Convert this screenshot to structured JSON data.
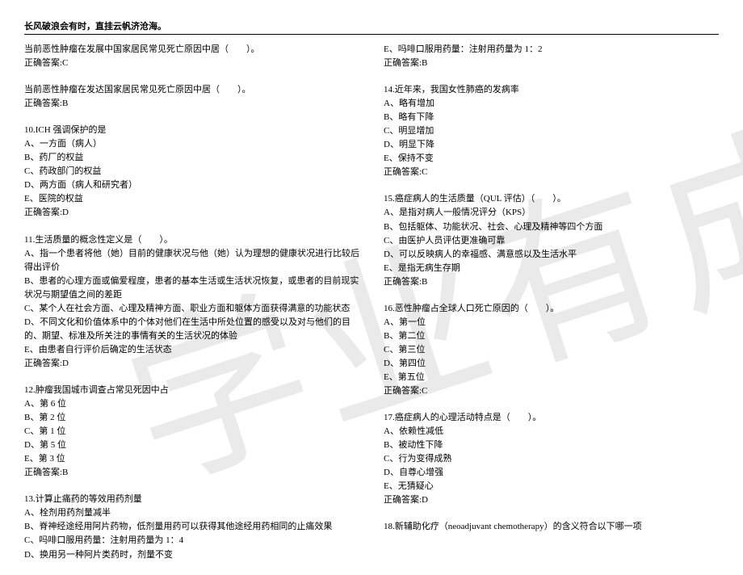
{
  "header_title": "长风破浪会有时，直挂云帆济沧海。",
  "watermark": "学业有成",
  "left": {
    "s1": {
      "q": "当前恶性肿瘤在发展中国家居民常见死亡原因中居（　　）。",
      "ans": "正确答案:C"
    },
    "s2": {
      "q": "当前恶性肿瘤在发达国家居民常见死亡原因中居（　　）。",
      "ans": "正确答案:B"
    },
    "q10": {
      "stem": "10.ICH 强调保护的是",
      "a": "A、一方面（病人）",
      "b": "B、药厂的权益",
      "c": "C、药政部门的权益",
      "d": "D、两方面（病人和研究者）",
      "e": "E、医院的权益",
      "ans": "正确答案:D"
    },
    "q11": {
      "stem": "11.生活质量的概念性定义是（　　）。",
      "a": "A、指一个患者将他（她）目前的健康状况与他（她）认为理想的健康状况进行比较后得出评价",
      "b": "B、患者的心理方面或偏爱程度，患者的基本生活或生活状况恢复，或患者的目前现实状况与期望值之间的差距",
      "c": "C、某个人在社会方面、心理及精神方面、职业方面和躯体方面获得满意的功能状态",
      "d": "D、不同文化和价值体系中的个体对他们在生活中所处位置的感受以及对与他们的目的、期望、标准及所关注的事情有关的生活状况的体验",
      "e": "E、由患者自行评价后确定的生活状态",
      "ans": "正确答案:D"
    },
    "q12": {
      "stem": "12.肿瘤我国城市调查占常见死因中占",
      "a": "A、第 6 位",
      "b": "B、第 2 位",
      "c": "C、第 1 位",
      "d": "D、第 5 位",
      "e": "E、第 3 位",
      "ans": "正确答案:B"
    },
    "q13": {
      "stem": "13.计算止痛药的等效用药剂量",
      "a": "A、栓剂用药剂量减半",
      "b": "B、脊神经途经用阿片药物，低剂量用药可以获得其他途经用药相同的止痛效果",
      "c": "C、吗啡口服用药量：注射用药量为 1：4",
      "d": "D、换用另一种阿片类药时，剂量不变"
    }
  },
  "right": {
    "q13r": {
      "e": "E、吗啡口服用药量：注射用药量为 1：2",
      "ans": "正确答案:B"
    },
    "q14": {
      "stem": "14.近年来，我国女性肺癌的发病率",
      "a": "A、略有增加",
      "b": "B、略有下降",
      "c": "C、明显增加",
      "d": "D、明显下降",
      "e": "E、保持不变",
      "ans": "正确答案:C"
    },
    "q15": {
      "stem": "15.癌症病人的生活质量（QUL 评估）（　　）。",
      "a": "A、是指对病人一般情况评分（KPS）",
      "b": "B、包括躯体、功能状况、社会、心理及精神等四个方面",
      "c": "C、由医护人员评估更准确可靠",
      "d": "D、可以反映病人的幸福感、满意感以及生活水平",
      "e": "E、是指无病生存期",
      "ans": "正确答案:B"
    },
    "q16": {
      "stem": "16.恶性肿瘤占全球人口死亡原因的（　　）。",
      "a": "A、第一位",
      "b": "B、第二位",
      "c": "C、第三位",
      "d": "D、第四位",
      "e": "E、第五位",
      "ans": "正确答案:C"
    },
    "q17": {
      "stem": "17.癌症病人的心理活动特点是（　　）。",
      "a": "A、依赖性减低",
      "b": "B、被动性下降",
      "c": "C、行为变得成熟",
      "d": "D、自尊心增强",
      "e": "E、无猜疑心",
      "ans": "正确答案:D"
    },
    "q18": {
      "stem": "18.新辅助化疗（neoadjuvant chemotherapy）的含义符合以下哪一项"
    }
  }
}
